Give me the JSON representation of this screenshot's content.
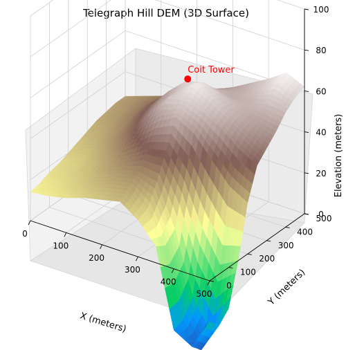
{
  "chart_data": {
    "type": "surface3d",
    "title": "Telegraph Hill DEM (3D Surface)",
    "xlabel": "X (meters)",
    "ylabel": "Y (meters)",
    "zlabel": "Elevation (meters)",
    "xlim": [
      0,
      500
    ],
    "ylim": [
      0,
      500
    ],
    "zlim": [
      0,
      100
    ],
    "x_ticks": [
      0,
      100,
      200,
      300,
      400,
      500
    ],
    "y_ticks": [
      0,
      100,
      200,
      300,
      400,
      500
    ],
    "z_ticks": [
      0,
      20,
      40,
      60,
      80,
      100
    ],
    "colormap": "terrain",
    "grid": true,
    "surface_grid": {
      "x": [
        0,
        50,
        100,
        150,
        200,
        250,
        300,
        350,
        400,
        450,
        500
      ],
      "y": [
        0,
        50,
        100,
        150,
        200,
        250,
        300,
        350,
        400,
        450,
        500
      ],
      "z": [
        [
          14,
          15,
          17,
          20,
          22,
          24,
          18,
          8,
          -30,
          -35,
          -20
        ],
        [
          15,
          17,
          20,
          23,
          26,
          28,
          20,
          5,
          -28,
          -40,
          -25
        ],
        [
          17,
          19,
          22,
          26,
          30,
          32,
          30,
          10,
          -20,
          -35,
          -20
        ],
        [
          18,
          20,
          24,
          29,
          34,
          40,
          42,
          30,
          10,
          -5,
          0
        ],
        [
          20,
          22,
          27,
          33,
          42,
          50,
          55,
          50,
          40,
          30,
          25
        ],
        [
          22,
          25,
          30,
          37,
          48,
          58,
          60,
          57,
          52,
          45,
          40
        ],
        [
          24,
          27,
          32,
          40,
          50,
          58,
          65,
          60,
          55,
          50,
          45
        ],
        [
          26,
          29,
          34,
          42,
          52,
          60,
          62,
          58,
          55,
          52,
          50
        ],
        [
          27,
          30,
          35,
          42,
          50,
          55,
          56,
          54,
          55,
          57,
          56
        ],
        [
          28,
          31,
          35,
          40,
          46,
          50,
          52,
          54,
          58,
          64,
          60
        ],
        [
          28,
          31,
          34,
          38,
          42,
          46,
          50,
          55,
          60,
          66,
          62
        ]
      ]
    },
    "annotations": [
      {
        "label": "Coit Tower",
        "x": 280,
        "y": 300,
        "z": 66,
        "marker_color": "#ff0000",
        "text_color": "#ff0000"
      }
    ]
  }
}
